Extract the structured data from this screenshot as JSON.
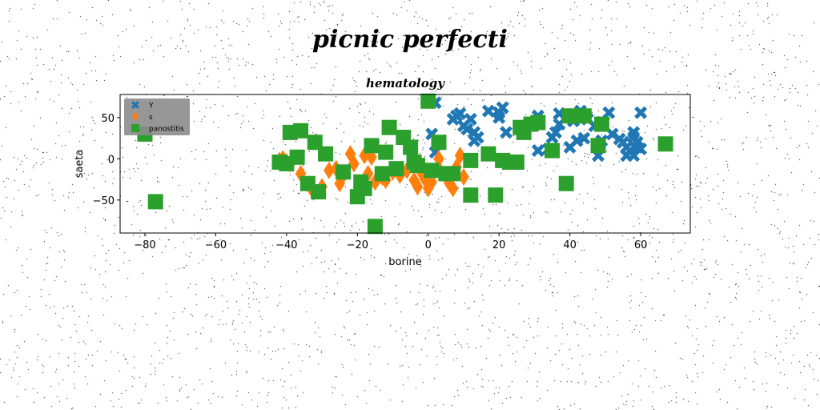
{
  "suptitle": "picnic perfecti",
  "chart_data": {
    "type": "scatter",
    "title": "hematology",
    "xlabel": "borine",
    "ylabel": "saeta",
    "xlim": [
      -87,
      74
    ],
    "ylim": [
      -90,
      78
    ],
    "xticks": [
      -80,
      -60,
      -40,
      -20,
      0,
      20,
      40,
      60
    ],
    "yticks": [
      -50,
      0,
      50
    ],
    "grid": false,
    "legend_position": "top-left",
    "series": [
      {
        "name": "Y",
        "marker": "X",
        "color": "#1f77b4",
        "points": [
          [
            1,
            30
          ],
          [
            2,
            8
          ],
          [
            2,
            68
          ],
          [
            7,
            48
          ],
          [
            8,
            52
          ],
          [
            9,
            55
          ],
          [
            10,
            40
          ],
          [
            11,
            36
          ],
          [
            12,
            48
          ],
          [
            13,
            22
          ],
          [
            13,
            32
          ],
          [
            14,
            26
          ],
          [
            17,
            58
          ],
          [
            20,
            50
          ],
          [
            20,
            56
          ],
          [
            21,
            62
          ],
          [
            22,
            32
          ],
          [
            27,
            35
          ],
          [
            31,
            10
          ],
          [
            31,
            52
          ],
          [
            34,
            12
          ],
          [
            35,
            26
          ],
          [
            36,
            32
          ],
          [
            37,
            42
          ],
          [
            37,
            55
          ],
          [
            40,
            14
          ],
          [
            41,
            46
          ],
          [
            42,
            22
          ],
          [
            43,
            58
          ],
          [
            44,
            25
          ],
          [
            45,
            48
          ],
          [
            47,
            40
          ],
          [
            48,
            4
          ],
          [
            49,
            22
          ],
          [
            49,
            40
          ],
          [
            51,
            56
          ],
          [
            52,
            30
          ],
          [
            54,
            24
          ],
          [
            55,
            20
          ],
          [
            56,
            4
          ],
          [
            56,
            14
          ],
          [
            57,
            10
          ],
          [
            58,
            4
          ],
          [
            58,
            26
          ],
          [
            58,
            32
          ],
          [
            59,
            20
          ],
          [
            59,
            14
          ],
          [
            60,
            12
          ],
          [
            60,
            56
          ]
        ]
      },
      {
        "name": "s",
        "marker": "d",
        "color": "#ff7f0e",
        "points": [
          [
            -42,
            -2
          ],
          [
            -41,
            0
          ],
          [
            -40,
            -4
          ],
          [
            -39,
            -6
          ],
          [
            -36,
            -18
          ],
          [
            -33,
            -36
          ],
          [
            -30,
            -34
          ],
          [
            -28,
            -14
          ],
          [
            -26,
            -12
          ],
          [
            -25,
            -30
          ],
          [
            -24,
            -20
          ],
          [
            -22,
            6
          ],
          [
            -21,
            -6
          ],
          [
            -18,
            4
          ],
          [
            -17,
            -18
          ],
          [
            -16,
            2
          ],
          [
            -15,
            -28
          ],
          [
            -13,
            -22
          ],
          [
            -12,
            -26
          ],
          [
            -10,
            -16
          ],
          [
            -8,
            -20
          ],
          [
            -6,
            -14
          ],
          [
            -4,
            -26
          ],
          [
            -3,
            -34
          ],
          [
            -2,
            -16
          ],
          [
            -1,
            -24
          ],
          [
            0,
            -30
          ],
          [
            0,
            -36
          ],
          [
            1,
            -28
          ],
          [
            3,
            0
          ],
          [
            3,
            -12
          ],
          [
            5,
            -22
          ],
          [
            6,
            -30
          ],
          [
            7,
            -36
          ],
          [
            8,
            -10
          ],
          [
            9,
            4
          ],
          [
            10,
            -22
          ]
        ]
      },
      {
        "name": "panostitis",
        "marker": "s",
        "color": "#2ca02c",
        "points": [
          [
            -80,
            30
          ],
          [
            -77,
            -52
          ],
          [
            -42,
            -4
          ],
          [
            -40,
            -6
          ],
          [
            -39,
            32
          ],
          [
            -37,
            2
          ],
          [
            -36,
            34
          ],
          [
            -34,
            -30
          ],
          [
            -32,
            20
          ],
          [
            -31,
            -40
          ],
          [
            -29,
            6
          ],
          [
            -24,
            -16
          ],
          [
            -20,
            -46
          ],
          [
            -19,
            -28
          ],
          [
            -18,
            -36
          ],
          [
            -16,
            16
          ],
          [
            -15,
            -82
          ],
          [
            -13,
            -18
          ],
          [
            -12,
            8
          ],
          [
            -11,
            38
          ],
          [
            -9,
            -12
          ],
          [
            -7,
            26
          ],
          [
            -5,
            14
          ],
          [
            -4,
            -4
          ],
          [
            -3,
            -8
          ],
          [
            0,
            70
          ],
          [
            1,
            -14
          ],
          [
            3,
            20
          ],
          [
            5,
            -18
          ],
          [
            7,
            -18
          ],
          [
            12,
            -2
          ],
          [
            12,
            -44
          ],
          [
            17,
            6
          ],
          [
            19,
            -44
          ],
          [
            21,
            -2
          ],
          [
            23,
            -4
          ],
          [
            25,
            -4
          ],
          [
            26,
            38
          ],
          [
            27,
            32
          ],
          [
            29,
            42
          ],
          [
            31,
            44
          ],
          [
            35,
            10
          ],
          [
            39,
            -30
          ],
          [
            40,
            52
          ],
          [
            44,
            52
          ],
          [
            48,
            16
          ],
          [
            49,
            42
          ],
          [
            67,
            18
          ]
        ]
      }
    ]
  }
}
